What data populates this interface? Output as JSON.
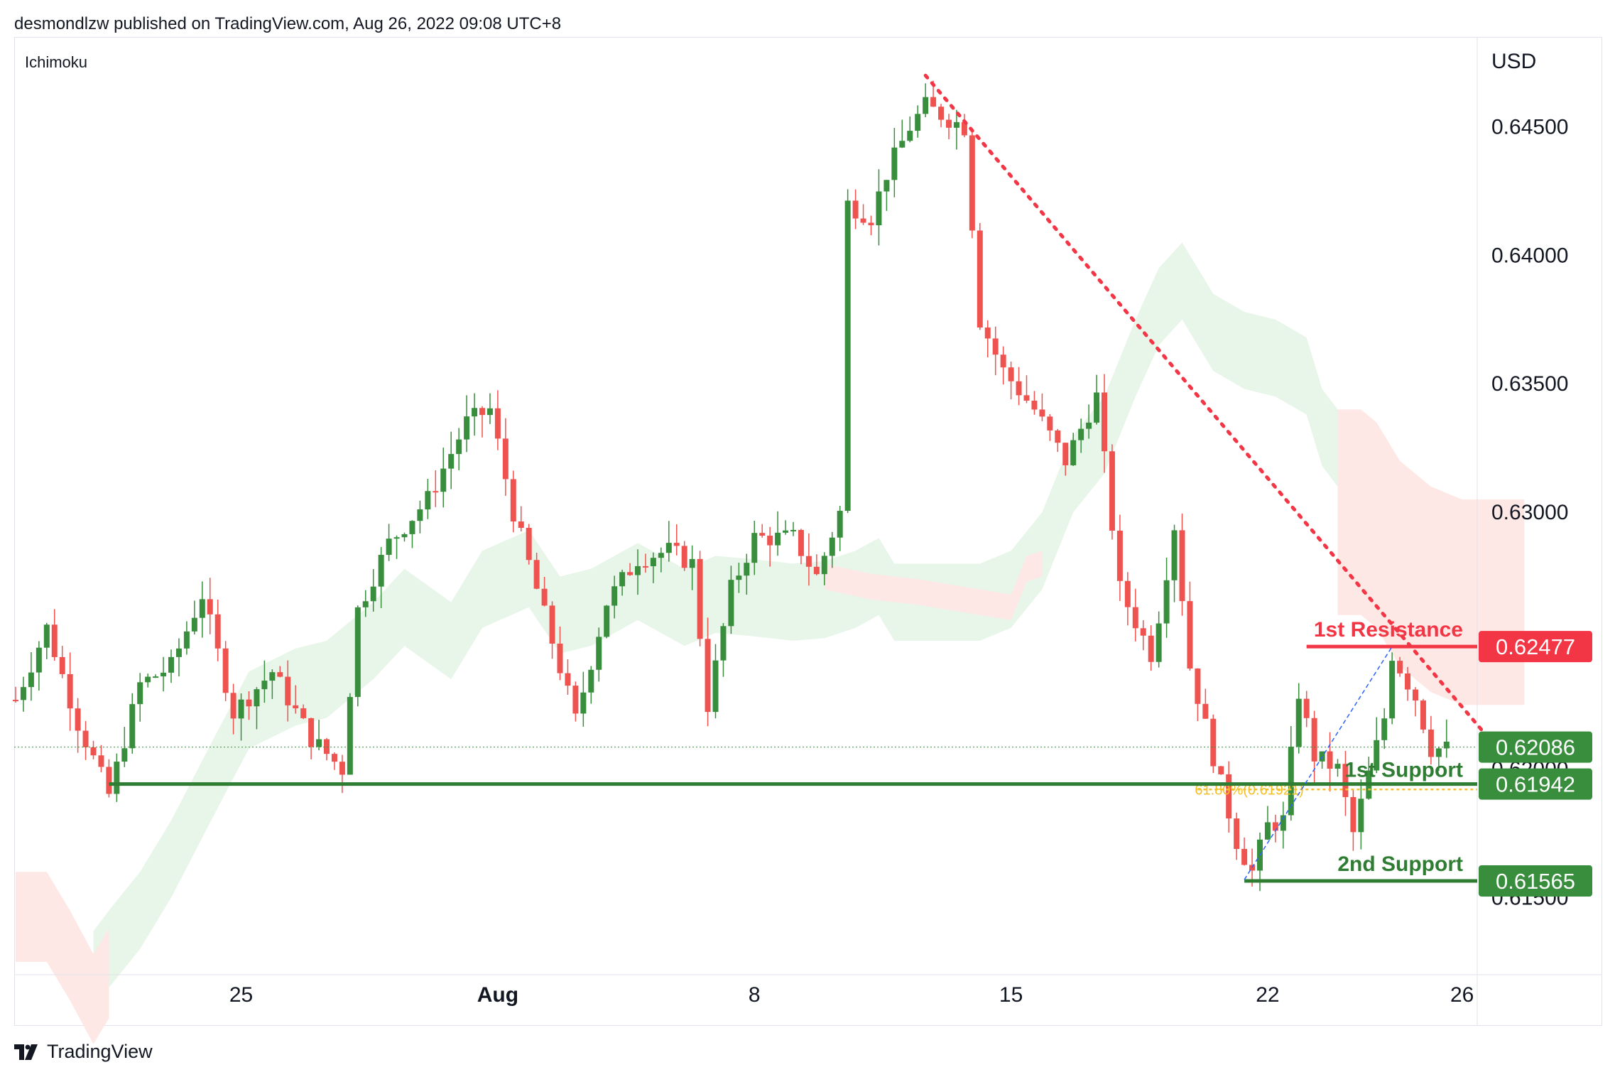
{
  "header": {
    "attribution": "desmondlzw published on TradingView.com, Aug 26, 2022 09:08 UTC+8"
  },
  "indicator": {
    "name": "Ichimoku"
  },
  "axis": {
    "currency": "USD"
  },
  "footer": {
    "brand": "TradingView"
  },
  "colors": {
    "up": "#388e3c",
    "down": "#ef5350",
    "resistance": "#f23645",
    "support": "#2e7d32",
    "fib": "#f5c026",
    "trend": "#f23645",
    "cloud_green": "#e8f5e9",
    "cloud_red": "#fde8e6"
  },
  "chart_data": {
    "type": "candlestick",
    "title": "",
    "indicator": "Ichimoku",
    "ylabel": "USD",
    "ylim": [
      0.612,
      0.6485
    ],
    "x_ticks": [
      {
        "label": "25",
        "bar": 29
      },
      {
        "label": "Aug",
        "bar": 62
      },
      {
        "label": "8",
        "bar": 95
      },
      {
        "label": "15",
        "bar": 128
      },
      {
        "label": "22",
        "bar": 161
      },
      {
        "label": "26",
        "bar": 186
      }
    ],
    "y_ticks": [
      0.645,
      0.64,
      0.635,
      0.63,
      0.625,
      0.62,
      0.615
    ],
    "y_tick_labels": [
      "0.64500",
      "0.64000",
      "0.63500",
      "0.63000",
      "0.62500",
      "0.62000",
      "0.61500"
    ],
    "bar_count": 195,
    "price_tags": [
      {
        "value": 0.62477,
        "label": "0.62477",
        "color": "#f23645"
      },
      {
        "value": 0.62086,
        "label": "0.62086",
        "color": "#388e3c"
      },
      {
        "value": 0.61942,
        "label": "0.61942",
        "color": "#388e3c"
      },
      {
        "value": 0.61565,
        "label": "0.61565",
        "color": "#388e3c"
      }
    ],
    "levels": [
      {
        "name": "1st Resistance",
        "label": "1st Resistance",
        "value": 0.62477,
        "from_bar": 166,
        "color": "#f23645"
      },
      {
        "name": "1st Support",
        "label": "1st Support",
        "value": 0.61942,
        "from_bar": 12,
        "color": "#2e7d32"
      },
      {
        "name": "2nd Support",
        "label": "2nd Support",
        "value": 0.61565,
        "from_bar": 158,
        "color": "#2e7d32"
      }
    ],
    "last_price": 0.62086,
    "fib": {
      "label": "61.80%(0.61921)",
      "value": 0.61921,
      "from_bar": 152
    },
    "trendline": {
      "from_bar": 117,
      "from_value": 0.647,
      "to_bar": 190,
      "to_value": 0.621
    },
    "swing": {
      "from_bar": 158,
      "from_value": 0.6157,
      "to_bar": 177,
      "to_value": 0.62477
    },
    "candle_anchors": [
      [
        0,
        0.6227
      ],
      [
        4,
        0.6255
      ],
      [
        8,
        0.6218
      ],
      [
        12,
        0.619
      ],
      [
        16,
        0.6233
      ],
      [
        20,
        0.624
      ],
      [
        24,
        0.6268
      ],
      [
        28,
        0.6222
      ],
      [
        33,
        0.6238
      ],
      [
        38,
        0.6212
      ],
      [
        42,
        0.62
      ],
      [
        44,
        0.6262
      ],
      [
        48,
        0.6288
      ],
      [
        53,
        0.6305
      ],
      [
        58,
        0.6335
      ],
      [
        61,
        0.634
      ],
      [
        64,
        0.63
      ],
      [
        68,
        0.626
      ],
      [
        72,
        0.6219
      ],
      [
        76,
        0.6265
      ],
      [
        80,
        0.6282
      ],
      [
        84,
        0.6285
      ],
      [
        87,
        0.628
      ],
      [
        89,
        0.6225
      ],
      [
        92,
        0.627
      ],
      [
        95,
        0.629
      ],
      [
        100,
        0.629
      ],
      [
        103,
        0.6275
      ],
      [
        106,
        0.63
      ],
      [
        107,
        0.642
      ],
      [
        110,
        0.6415
      ],
      [
        112,
        0.6432
      ],
      [
        115,
        0.645
      ],
      [
        117,
        0.6458
      ],
      [
        122,
        0.645
      ],
      [
        124,
        0.6375
      ],
      [
        127,
        0.6355
      ],
      [
        131,
        0.634
      ],
      [
        135,
        0.632
      ],
      [
        139,
        0.6345
      ],
      [
        142,
        0.627
      ],
      [
        146,
        0.6245
      ],
      [
        147,
        0.626
      ],
      [
        149,
        0.6295
      ],
      [
        151,
        0.624
      ],
      [
        154,
        0.6205
      ],
      [
        157,
        0.6172
      ],
      [
        159,
        0.616
      ],
      [
        161,
        0.6178
      ],
      [
        163,
        0.618
      ],
      [
        165,
        0.623
      ],
      [
        167,
        0.6205
      ],
      [
        170,
        0.62
      ],
      [
        172,
        0.6175
      ],
      [
        174,
        0.6198
      ],
      [
        176,
        0.622
      ],
      [
        177,
        0.6245
      ],
      [
        180,
        0.6228
      ],
      [
        182,
        0.6208
      ]
    ],
    "cloud_green": [
      [
        10,
        0.6137
      ],
      [
        12,
        0.6145
      ],
      [
        16,
        0.616
      ],
      [
        20,
        0.618
      ],
      [
        26,
        0.6215
      ],
      [
        30,
        0.6238
      ],
      [
        36,
        0.6247
      ],
      [
        40,
        0.625
      ],
      [
        46,
        0.6265
      ],
      [
        50,
        0.6278
      ],
      [
        56,
        0.6265
      ],
      [
        60,
        0.6285
      ],
      [
        66,
        0.6293
      ],
      [
        70,
        0.6275
      ],
      [
        74,
        0.6278
      ],
      [
        80,
        0.6288
      ],
      [
        86,
        0.6278
      ],
      [
        90,
        0.6283
      ],
      [
        94,
        0.6282
      ],
      [
        100,
        0.628
      ],
      [
        104,
        0.6281
      ],
      [
        108,
        0.6285
      ],
      [
        111,
        0.629
      ],
      [
        113,
        0.628
      ],
      [
        116,
        0.628
      ],
      [
        120,
        0.628
      ],
      [
        124,
        0.628
      ],
      [
        128,
        0.6285
      ],
      [
        132,
        0.63
      ],
      [
        136,
        0.633
      ],
      [
        140,
        0.6345
      ],
      [
        144,
        0.6375
      ],
      [
        147,
        0.6395
      ],
      [
        150,
        0.6405
      ],
      [
        154,
        0.6385
      ],
      [
        158,
        0.6378
      ],
      [
        162,
        0.6375
      ],
      [
        166,
        0.6368
      ],
      [
        168,
        0.6348
      ],
      [
        170,
        0.634
      ]
    ],
    "cloud_red_left": [
      [
        0,
        0.616
      ],
      [
        4,
        0.616
      ],
      [
        7,
        0.6145
      ],
      [
        10,
        0.6128
      ],
      [
        12,
        0.6138
      ]
    ],
    "cloud_red_right": [
      [
        170,
        0.634
      ],
      [
        173,
        0.634
      ],
      [
        175,
        0.6335
      ],
      [
        178,
        0.632
      ],
      [
        182,
        0.631
      ],
      [
        186,
        0.6305
      ],
      [
        190,
        0.6305
      ],
      [
        194,
        0.6305
      ]
    ],
    "cloud_red_mid": [
      [
        104,
        0.628
      ],
      [
        110,
        0.6276
      ],
      [
        116,
        0.6274
      ],
      [
        124,
        0.627
      ],
      [
        128,
        0.6268
      ],
      [
        130,
        0.6283
      ],
      [
        132,
        0.6285
      ]
    ]
  }
}
